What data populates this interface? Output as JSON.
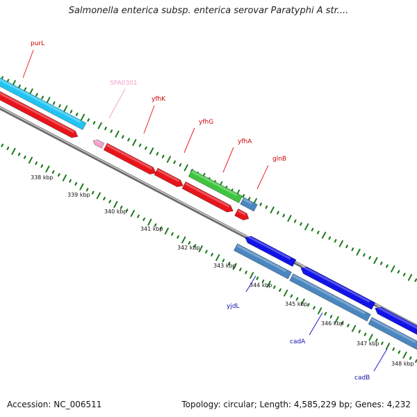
{
  "title": "Salmonella enterica subsp. enterica serovar Paratyphi A str....",
  "footer": {
    "accession": "Accession: NC_006511",
    "summary": "Topology: circular; Length: 4,585,229 bp; Genes: 4,232"
  },
  "kbp_labels": [
    "338 kbp",
    "339 kbp",
    "340 kbp",
    "341 kbp",
    "342 kbp",
    "343 kbp",
    "344 kbp",
    "345 kbp",
    "346 kbp",
    "347 kbp",
    "348 kbp"
  ],
  "genes": {
    "forward": [
      {
        "name": "purL",
        "color": "#cc0000"
      },
      {
        "name": "SPA0301",
        "color": "#f4a0c8"
      },
      {
        "name": "yfhK",
        "color": "#cc0000"
      },
      {
        "name": "yfhG",
        "color": "#cc0000"
      },
      {
        "name": "yfhA",
        "color": "#cc0000"
      },
      {
        "name": "glnB",
        "color": "#cc0000"
      }
    ],
    "reverse": [
      {
        "name": "yjdL",
        "color": "#1010aa"
      },
      {
        "name": "cadA",
        "color": "#1010aa"
      },
      {
        "name": "cadB",
        "color": "#1010aa"
      }
    ]
  },
  "colors": {
    "cds_red": "#e8141b",
    "cds_cyan": "#22c4f2",
    "cds_green": "#3ec43e",
    "cds_steel": "#4a86c0",
    "cds_blue": "#1212e8",
    "pseudo_pink": "#f4a0c8",
    "backbone": "#8a8a8a",
    "tick_green": "#1b7a1b"
  }
}
